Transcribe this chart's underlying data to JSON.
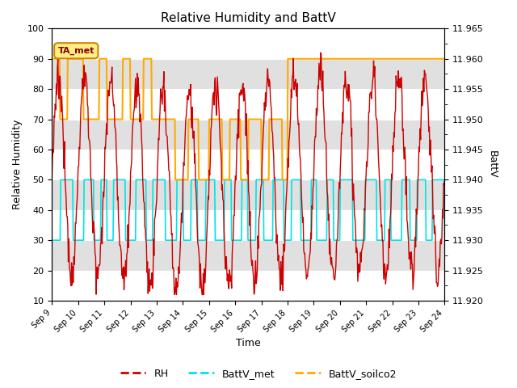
{
  "title": "Relative Humidity and BattV",
  "xlabel": "Time",
  "ylabel_left": "Relative Humidity",
  "ylabel_right": "BattV",
  "ylim_left": [
    10,
    100
  ],
  "ylim_right": [
    11.92,
    11.965
  ],
  "yticks_left": [
    10,
    20,
    30,
    40,
    50,
    60,
    70,
    80,
    90,
    100
  ],
  "yticks_right": [
    11.92,
    11.925,
    11.93,
    11.935,
    11.94,
    11.945,
    11.95,
    11.955,
    11.96,
    11.965
  ],
  "xtick_labels": [
    "Sep 9",
    "Sep 10",
    "Sep 11",
    "Sep 12",
    "Sep 13",
    "Sep 14",
    "Sep 15",
    "Sep 16",
    "Sep 17",
    "Sep 18",
    "Sep 19",
    "Sep 20",
    "Sep 21",
    "Sep 22",
    "Sep 23",
    "Sep 24"
  ],
  "color_RH": "#cc0000",
  "color_BattV_met": "#00e5e5",
  "color_BattV_soilco2": "#ffaa00",
  "annotation_box_text": "TA_met",
  "annotation_box_facecolor": "#ffee88",
  "annotation_box_edgecolor": "#cc8800",
  "bg_white": "#ffffff",
  "bg_gray": "#e0e0e0",
  "title_fontsize": 11,
  "axis_fontsize": 9,
  "tick_fontsize": 8
}
